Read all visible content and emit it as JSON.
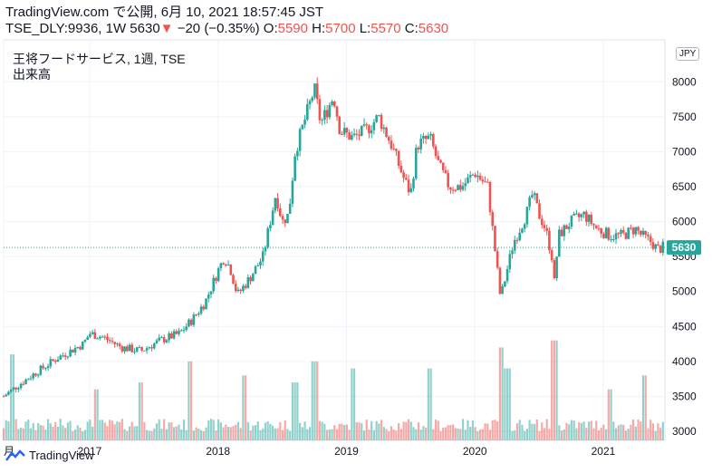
{
  "header": {
    "line1": "TradingView.com で公開, 6月 10, 2021 18:57:45 JST",
    "symbol": "TSE_DLY:9936, 1W 5630",
    "change_arrow": "▼",
    "change": "−20 (−0.35%)",
    "o_label": "O:",
    "o_value": "5590",
    "h_label": "H:",
    "h_value": "5700",
    "l_label": "L:",
    "l_value": "5570",
    "c_label": "C:",
    "c_value": "5630"
  },
  "legend": {
    "title": "王将フードサービス, 1週, TSE",
    "volume_label": "出来高"
  },
  "currency_tag": "JPY",
  "price_tag": "5630",
  "footer": {
    "brand": "TradingView"
  },
  "colors": {
    "up": "#26a69a",
    "down": "#ef5350",
    "grid": "#f0f3fa",
    "last_line": "#26a69a"
  },
  "chart_data": {
    "type": "candlestick",
    "title": "王将フードサービス, 1週, TSE",
    "y_axis": {
      "ylim": [
        2870,
        8600
      ],
      "ticks": [
        3000,
        3500,
        4000,
        4500,
        5000,
        5500,
        6000,
        6500,
        7000,
        7500,
        8000
      ]
    },
    "x_axis": {
      "range": [
        2016.33,
        2021.48
      ],
      "ticks": [
        {
          "x": 2016.33,
          "label": "月"
        },
        {
          "x": 2017.0,
          "label": "2017"
        },
        {
          "x": 2018.0,
          "label": "2018"
        },
        {
          "x": 2019.0,
          "label": "2019"
        },
        {
          "x": 2020.0,
          "label": "2020"
        },
        {
          "x": 2021.0,
          "label": "2021"
        }
      ]
    },
    "last_price": 5630,
    "grid": true,
    "close_path": [
      [
        2016.33,
        3500
      ],
      [
        2016.4,
        3600
      ],
      [
        2016.55,
        3800
      ],
      [
        2016.75,
        4050
      ],
      [
        2016.95,
        4250
      ],
      [
        2017.0,
        4400
      ],
      [
        2017.1,
        4350
      ],
      [
        2017.25,
        4200
      ],
      [
        2017.4,
        4150
      ],
      [
        2017.55,
        4300
      ],
      [
        2017.7,
        4400
      ],
      [
        2017.8,
        4600
      ],
      [
        2017.9,
        4850
      ],
      [
        2018.0,
        5300
      ],
      [
        2018.05,
        5500
      ],
      [
        2018.1,
        5300
      ],
      [
        2018.15,
        4950
      ],
      [
        2018.25,
        5200
      ],
      [
        2018.35,
        5500
      ],
      [
        2018.45,
        6400
      ],
      [
        2018.5,
        6000
      ],
      [
        2018.55,
        6100
      ],
      [
        2018.6,
        7000
      ],
      [
        2018.7,
        7600
      ],
      [
        2018.75,
        7900
      ],
      [
        2018.8,
        7400
      ],
      [
        2018.9,
        7800
      ],
      [
        2018.95,
        7300
      ],
      [
        2019.05,
        7200
      ],
      [
        2019.15,
        7300
      ],
      [
        2019.25,
        7500
      ],
      [
        2019.35,
        7100
      ],
      [
        2019.45,
        6600
      ],
      [
        2019.5,
        6400
      ],
      [
        2019.55,
        7100
      ],
      [
        2019.65,
        7200
      ],
      [
        2019.72,
        6800
      ],
      [
        2019.8,
        6500
      ],
      [
        2019.9,
        6500
      ],
      [
        2020.0,
        6700
      ],
      [
        2020.1,
        6500
      ],
      [
        2020.15,
        5700
      ],
      [
        2020.2,
        4900
      ],
      [
        2020.25,
        5300
      ],
      [
        2020.3,
        5700
      ],
      [
        2020.4,
        6100
      ],
      [
        2020.45,
        6400
      ],
      [
        2020.5,
        6100
      ],
      [
        2020.55,
        5900
      ],
      [
        2020.6,
        5500
      ],
      [
        2020.62,
        5100
      ],
      [
        2020.65,
        5800
      ],
      [
        2020.75,
        6000
      ],
      [
        2020.85,
        6100
      ],
      [
        2020.95,
        5900
      ],
      [
        2021.05,
        5800
      ],
      [
        2021.15,
        5800
      ],
      [
        2021.25,
        5900
      ],
      [
        2021.3,
        5800
      ],
      [
        2021.38,
        5700
      ],
      [
        2021.42,
        5600
      ],
      [
        2021.46,
        5630
      ]
    ],
    "volume_spikes": [
      [
        2016.4,
        4100
      ],
      [
        2017.05,
        3600
      ],
      [
        2017.4,
        3700
      ],
      [
        2017.78,
        4000
      ],
      [
        2018.2,
        3800
      ],
      [
        2018.6,
        3700
      ],
      [
        2018.75,
        4000
      ],
      [
        2019.05,
        3900
      ],
      [
        2019.65,
        3900
      ],
      [
        2020.2,
        4200
      ],
      [
        2020.25,
        3900
      ],
      [
        2020.62,
        4300
      ],
      [
        2021.05,
        3600
      ],
      [
        2021.32,
        3800
      ]
    ]
  }
}
